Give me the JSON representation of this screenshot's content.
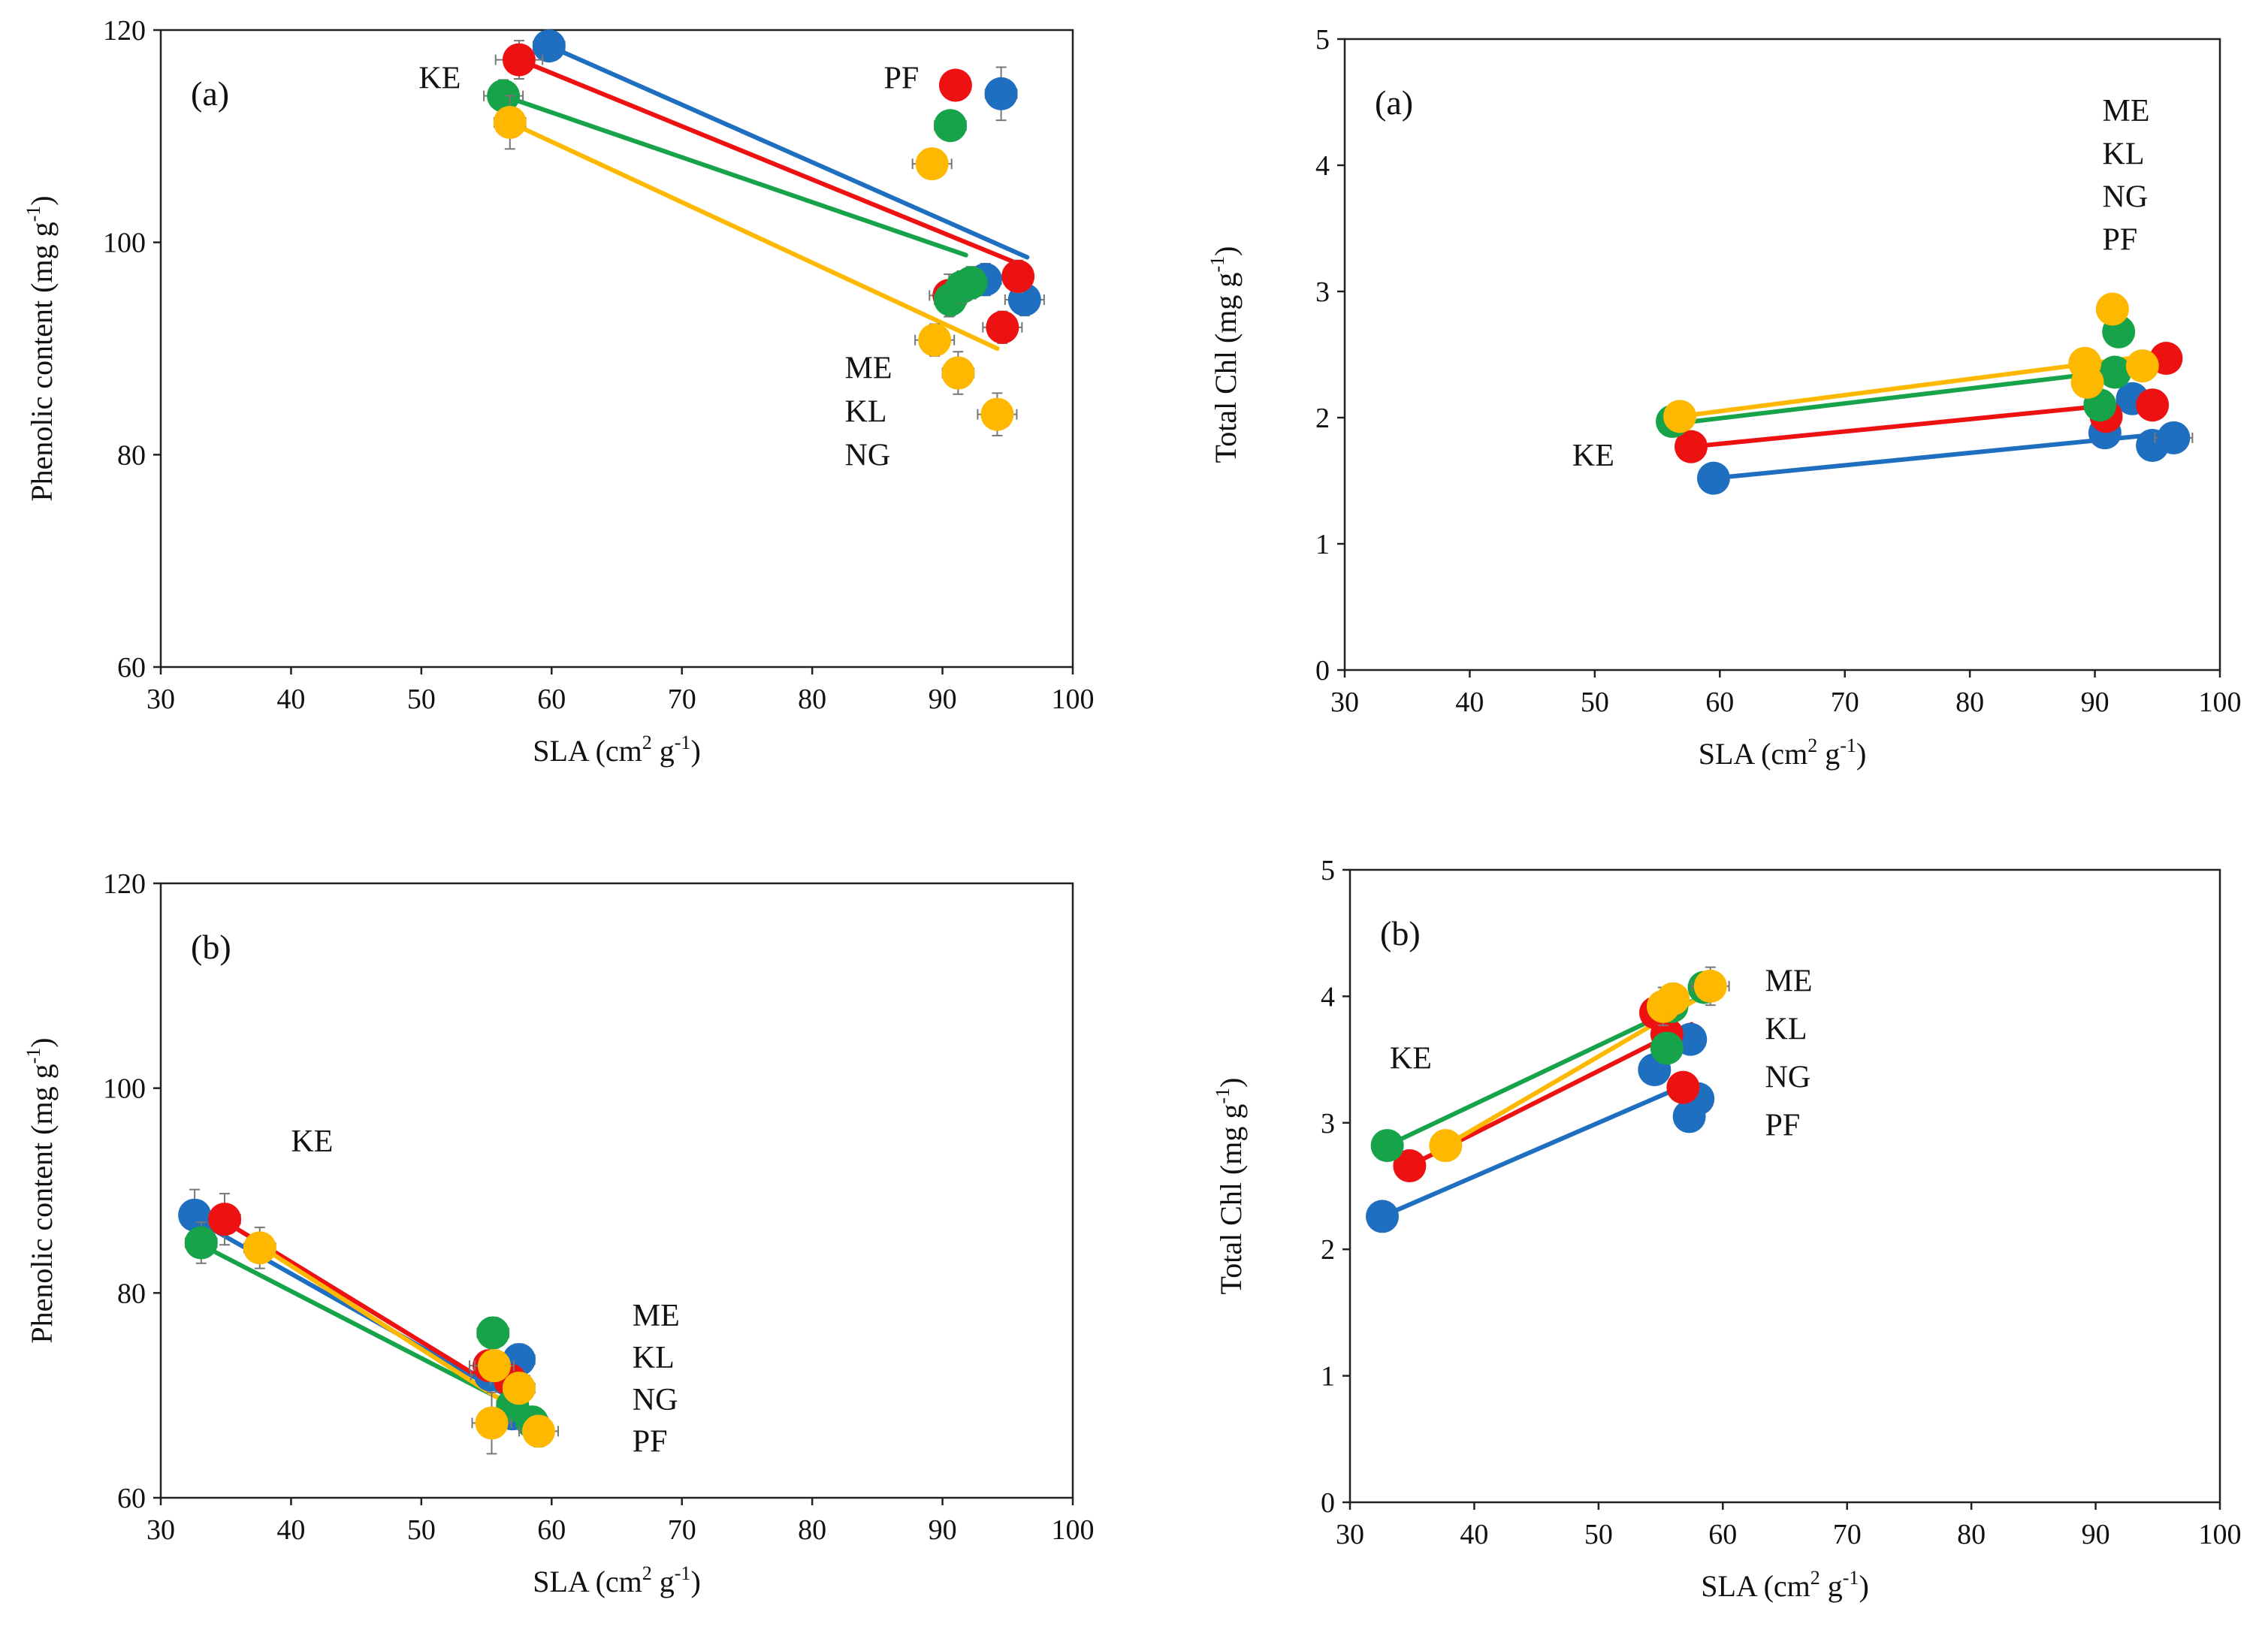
{
  "colors": {
    "ME": "#1f6fc0",
    "KL": "#ee1111",
    "NG": "#16a34a",
    "PF": "#ffb800"
  },
  "chart_data": [
    {
      "id": "top-left",
      "type": "scatter",
      "panel_label": "(a)",
      "xlabel": {
        "main": "SLA (cm",
        "sup1": "2",
        "mid": " g",
        "sup2": "-1",
        "end": ")"
      },
      "ylabel": {
        "main": "Phenolic content (mg g",
        "sup": "-1",
        "end": ")"
      },
      "xlim": [
        30,
        100
      ],
      "ylim": [
        60,
        120
      ],
      "xticks": [
        "30",
        "40",
        "50",
        "60",
        "70",
        "80",
        "90",
        "100"
      ],
      "yticks": [
        "60",
        "80",
        "100",
        "120"
      ],
      "site_labels": [
        {
          "text": "KE",
          "x": 49.8,
          "y": 114.5
        },
        {
          "text": "PF",
          "x": 85.5,
          "y": 114.5
        },
        {
          "text": "ME",
          "x": 82.5,
          "y": 87.2
        },
        {
          "text": "KL",
          "x": 82.5,
          "y": 83.1
        },
        {
          "text": "NG",
          "x": 82.5,
          "y": 79.0
        }
      ],
      "series": [
        {
          "name": "ME",
          "points": [
            {
              "x": 59.8,
              "y": 118.5,
              "xerr": 1.2,
              "yerr": 1.2
            },
            {
              "x": 94.5,
              "y": 114.0,
              "xerr": 1.2,
              "yerr": 2.5
            },
            {
              "x": 93.3,
              "y": 96.5,
              "xerr": 1.2,
              "yerr": 1.5
            },
            {
              "x": 96.3,
              "y": 94.6,
              "xerr": 1.5,
              "yerr": 1.5
            }
          ],
          "fit": [
            [
              59.8,
              118.5
            ],
            [
              96.5,
              98.6
            ]
          ]
        },
        {
          "name": "KL",
          "points": [
            {
              "x": 57.5,
              "y": 117.2,
              "xerr": 1.8,
              "yerr": 1.8
            },
            {
              "x": 91.0,
              "y": 114.8,
              "xerr": 1.0,
              "yerr": 1.2
            },
            {
              "x": 90.5,
              "y": 95.0,
              "xerr": 1.5,
              "yerr": 2.0
            },
            {
              "x": 95.8,
              "y": 96.8,
              "xerr": 1.0,
              "yerr": 1.5
            },
            {
              "x": 94.6,
              "y": 92.0,
              "xerr": 1.5,
              "yerr": 1.5
            }
          ],
          "fit": [
            [
              57.5,
              117.2
            ],
            [
              96.0,
              97.9
            ]
          ]
        },
        {
          "name": "NG",
          "points": [
            {
              "x": 56.3,
              "y": 113.8,
              "xerr": 1.5,
              "yerr": 1.5
            },
            {
              "x": 90.6,
              "y": 111.0,
              "xerr": 1.2,
              "yerr": 1.2
            },
            {
              "x": 90.6,
              "y": 94.6,
              "xerr": 1.2,
              "yerr": 1.5
            },
            {
              "x": 91.5,
              "y": 95.8,
              "xerr": 1.2,
              "yerr": 1.5
            },
            {
              "x": 92.2,
              "y": 96.2,
              "xerr": 1.0,
              "yerr": 1.5
            }
          ],
          "fit": [
            [
              56.3,
              113.8
            ],
            [
              91.8,
              98.8
            ]
          ]
        },
        {
          "name": "PF",
          "points": [
            {
              "x": 56.8,
              "y": 111.3,
              "xerr": 1.2,
              "yerr": 2.5
            },
            {
              "x": 89.2,
              "y": 107.4,
              "xerr": 1.5,
              "yerr": 1.2
            },
            {
              "x": 89.4,
              "y": 90.8,
              "xerr": 1.5,
              "yerr": 1.5
            },
            {
              "x": 91.2,
              "y": 87.7,
              "xerr": 1.2,
              "yerr": 2.0
            },
            {
              "x": 94.2,
              "y": 83.8,
              "xerr": 1.5,
              "yerr": 2.0
            }
          ],
          "fit": [
            [
              56.8,
              111.3
            ],
            [
              94.2,
              90.0
            ]
          ]
        }
      ]
    },
    {
      "id": "top-right",
      "type": "scatter",
      "panel_label": "(a)",
      "xlabel": {
        "main": "SLA (cm",
        "sup1": "2",
        "mid": " g",
        "sup2": "-1",
        "end": ")"
      },
      "ylabel": {
        "main": "Total Chl (mg g",
        "sup": "-1",
        "end": ")"
      },
      "xlim": [
        30,
        100
      ],
      "ylim": [
        0,
        5
      ],
      "xticks": [
        "30",
        "40",
        "50",
        "60",
        "70",
        "80",
        "90",
        "100"
      ],
      "yticks": [
        "0",
        "1",
        "2",
        "3",
        "4",
        "5"
      ],
      "site_labels": [
        {
          "text": "ME",
          "x": 90.6,
          "y": 4.35
        },
        {
          "text": "KL",
          "x": 90.6,
          "y": 4.01
        },
        {
          "text": "NG",
          "x": 90.6,
          "y": 3.67
        },
        {
          "text": "PF",
          "x": 90.6,
          "y": 3.33
        },
        {
          "text": "KE",
          "x": 48.2,
          "y": 1.62
        }
      ],
      "series": [
        {
          "name": "ME",
          "points": [
            {
              "x": 59.5,
              "y": 1.52,
              "xerr": 1.0,
              "yerr": 0.05
            },
            {
              "x": 90.8,
              "y": 1.88,
              "xerr": 1.2,
              "yerr": 0.06
            },
            {
              "x": 93.0,
              "y": 2.15,
              "xerr": 1.2,
              "yerr": 0.06
            },
            {
              "x": 94.6,
              "y": 1.78,
              "xerr": 1.2,
              "yerr": 0.05
            },
            {
              "x": 96.3,
              "y": 1.84,
              "xerr": 1.5,
              "yerr": 0.05
            }
          ],
          "fit": [
            [
              59.5,
              1.52
            ],
            [
              96.3,
              1.88
            ]
          ]
        },
        {
          "name": "KL",
          "points": [
            {
              "x": 57.7,
              "y": 1.77,
              "xerr": 1.0,
              "yerr": 0.05
            },
            {
              "x": 90.9,
              "y": 2.01,
              "xerr": 1.2,
              "yerr": 0.06
            },
            {
              "x": 94.6,
              "y": 2.1,
              "xerr": 1.2,
              "yerr": 0.06
            },
            {
              "x": 95.7,
              "y": 2.47,
              "xerr": 1.2,
              "yerr": 0.06
            }
          ],
          "fit": [
            [
              57.7,
              1.77
            ],
            [
              95.5,
              2.14
            ]
          ]
        },
        {
          "name": "NG",
          "points": [
            {
              "x": 56.2,
              "y": 1.97,
              "xerr": 1.2,
              "yerr": 0.05
            },
            {
              "x": 90.4,
              "y": 2.1,
              "xerr": 1.2,
              "yerr": 0.06
            },
            {
              "x": 91.6,
              "y": 2.36,
              "xerr": 1.2,
              "yerr": 0.06
            },
            {
              "x": 91.9,
              "y": 2.68,
              "xerr": 1.2,
              "yerr": 0.06
            }
          ],
          "fit": [
            [
              56.2,
              1.95
            ],
            [
              91.8,
              2.37
            ]
          ]
        },
        {
          "name": "PF",
          "points": [
            {
              "x": 56.8,
              "y": 2.01,
              "xerr": 1.2,
              "yerr": 0.05
            },
            {
              "x": 89.2,
              "y": 2.43,
              "xerr": 1.2,
              "yerr": 0.06
            },
            {
              "x": 89.4,
              "y": 2.28,
              "xerr": 1.2,
              "yerr": 0.06
            },
            {
              "x": 93.8,
              "y": 2.41,
              "xerr": 1.2,
              "yerr": 0.06
            },
            {
              "x": 91.4,
              "y": 2.86,
              "xerr": 1.2,
              "yerr": 0.06
            }
          ],
          "fit": [
            [
              56.8,
              2.01
            ],
            [
              93.6,
              2.48
            ]
          ]
        }
      ]
    },
    {
      "id": "bottom-left",
      "type": "scatter",
      "panel_label": "(b)",
      "xlabel": {
        "main": "SLA (cm",
        "sup1": "2",
        "mid": " g",
        "sup2": "-1",
        "end": ")"
      },
      "ylabel": {
        "main": "Phenolic content (mg g",
        "sup": "-1",
        "end": ")"
      },
      "xlim": [
        30,
        100
      ],
      "ylim": [
        60,
        120
      ],
      "xticks": [
        "30",
        "40",
        "50",
        "60",
        "70",
        "80",
        "90",
        "100"
      ],
      "yticks": [
        "60",
        "80",
        "100",
        "120"
      ],
      "site_labels": [
        {
          "text": "KE",
          "x": 40.0,
          "y": 93.8
        },
        {
          "text": "ME",
          "x": 66.2,
          "y": 76.8
        },
        {
          "text": "KL",
          "x": 66.2,
          "y": 72.7
        },
        {
          "text": "NG",
          "x": 66.2,
          "y": 68.6
        },
        {
          "text": "PF",
          "x": 66.2,
          "y": 64.5
        }
      ],
      "series": [
        {
          "name": "ME",
          "points": [
            {
              "x": 32.6,
              "y": 87.6,
              "xerr": 1.0,
              "yerr": 2.5
            },
            {
              "x": 55.3,
              "y": 72.0,
              "xerr": 1.5,
              "yerr": 1.5
            },
            {
              "x": 57.5,
              "y": 73.5,
              "xerr": 1.2,
              "yerr": 1.5
            },
            {
              "x": 57.0,
              "y": 68.2,
              "xerr": 1.2,
              "yerr": 1.5
            }
          ],
          "fit": [
            [
              32.6,
              87.2
            ],
            [
              58.5,
              68.6
            ]
          ]
        },
        {
          "name": "KL",
          "points": [
            {
              "x": 34.9,
              "y": 87.2,
              "xerr": 1.2,
              "yerr": 2.5
            },
            {
              "x": 55.2,
              "y": 72.9,
              "xerr": 1.5,
              "yerr": 1.5
            },
            {
              "x": 56.8,
              "y": 71.5,
              "xerr": 1.5,
              "yerr": 1.5
            }
          ],
          "fit": [
            [
              34.9,
              87.0
            ],
            [
              58.0,
              69.0
            ]
          ]
        },
        {
          "name": "NG",
          "points": [
            {
              "x": 33.1,
              "y": 84.9,
              "xerr": 1.2,
              "yerr": 2.0
            },
            {
              "x": 55.5,
              "y": 76.1,
              "xerr": 1.2,
              "yerr": 1.5
            },
            {
              "x": 57.0,
              "y": 69.0,
              "xerr": 1.2,
              "yerr": 1.5
            },
            {
              "x": 58.5,
              "y": 67.4,
              "xerr": 1.2,
              "yerr": 1.5
            }
          ],
          "fit": [
            [
              33.1,
              84.7
            ],
            [
              59.2,
              67.6
            ]
          ]
        },
        {
          "name": "PF",
          "points": [
            {
              "x": 37.6,
              "y": 84.4,
              "xerr": 1.2,
              "yerr": 2.0
            },
            {
              "x": 55.6,
              "y": 72.9,
              "xerr": 1.5,
              "yerr": 1.5
            },
            {
              "x": 57.5,
              "y": 70.7,
              "xerr": 1.2,
              "yerr": 1.5
            },
            {
              "x": 55.4,
              "y": 67.3,
              "xerr": 1.5,
              "yerr": 3.0
            },
            {
              "x": 59.0,
              "y": 66.5,
              "xerr": 1.5,
              "yerr": 1.5
            }
          ],
          "fit": [
            [
              37.6,
              84.6
            ],
            [
              59.0,
              67.2
            ]
          ]
        }
      ]
    },
    {
      "id": "bottom-right",
      "type": "scatter",
      "panel_label": "(b)",
      "xlabel": {
        "main": "SLA (cm",
        "sup1": "2",
        "mid": " g",
        "sup2": "-1",
        "end": ")"
      },
      "ylabel": {
        "main": "Total Chl (mg g",
        "sup": "-1",
        "end": ")"
      },
      "xlim": [
        30,
        100
      ],
      "ylim": [
        0,
        5
      ],
      "xticks": [
        "30",
        "40",
        "50",
        "60",
        "70",
        "80",
        "90",
        "100"
      ],
      "yticks": [
        "0",
        "1",
        "2",
        "3",
        "4",
        "5"
      ],
      "site_labels": [
        {
          "text": "KE",
          "x": 33.2,
          "y": 3.43
        },
        {
          "text": "ME",
          "x": 63.4,
          "y": 4.04
        },
        {
          "text": "KL",
          "x": 63.4,
          "y": 3.66
        },
        {
          "text": "NG",
          "x": 63.4,
          "y": 3.28
        },
        {
          "text": "PF",
          "x": 63.4,
          "y": 2.9
        }
      ],
      "series": [
        {
          "name": "ME",
          "points": [
            {
              "x": 32.6,
              "y": 2.26,
              "xerr": 0.8,
              "yerr": 0.06
            },
            {
              "x": 54.5,
              "y": 3.42,
              "xerr": 1.2,
              "yerr": 0.08
            },
            {
              "x": 57.4,
              "y": 3.66,
              "xerr": 1.2,
              "yerr": 0.08
            },
            {
              "x": 58.0,
              "y": 3.19,
              "xerr": 1.2,
              "yerr": 0.08
            },
            {
              "x": 57.3,
              "y": 3.05,
              "xerr": 1.2,
              "yerr": 0.08
            }
          ],
          "fit": [
            [
              32.6,
              2.26
            ],
            [
              57.5,
              3.32
            ]
          ]
        },
        {
          "name": "KL",
          "points": [
            {
              "x": 34.8,
              "y": 2.66,
              "xerr": 1.2,
              "yerr": 0.08
            },
            {
              "x": 54.6,
              "y": 3.87,
              "xerr": 1.2,
              "yerr": 0.1
            },
            {
              "x": 55.5,
              "y": 3.7,
              "xerr": 1.2,
              "yerr": 0.1
            },
            {
              "x": 56.8,
              "y": 3.28,
              "xerr": 1.2,
              "yerr": 0.08
            }
          ],
          "fit": [
            [
              34.8,
              2.66
            ],
            [
              57.5,
              3.78
            ]
          ]
        },
        {
          "name": "NG",
          "points": [
            {
              "x": 33.0,
              "y": 2.82,
              "xerr": 1.0,
              "yerr": 0.08
            },
            {
              "x": 55.5,
              "y": 3.59,
              "xerr": 1.2,
              "yerr": 0.1
            },
            {
              "x": 55.9,
              "y": 3.92,
              "xerr": 1.2,
              "yerr": 0.1
            },
            {
              "x": 58.5,
              "y": 4.07,
              "xerr": 1.2,
              "yerr": 0.1
            }
          ],
          "fit": [
            [
              33.0,
              2.82
            ],
            [
              59.0,
              4.03
            ]
          ]
        },
        {
          "name": "PF",
          "points": [
            {
              "x": 37.7,
              "y": 2.82,
              "xerr": 1.2,
              "yerr": 0.12
            },
            {
              "x": 55.2,
              "y": 3.92,
              "xerr": 1.2,
              "yerr": 0.15
            },
            {
              "x": 56.0,
              "y": 3.98,
              "xerr": 1.2,
              "yerr": 0.12
            },
            {
              "x": 59.0,
              "y": 4.08,
              "xerr": 1.5,
              "yerr": 0.15
            }
          ],
          "fit": [
            [
              37.7,
              2.82
            ],
            [
              59.0,
              4.04
            ]
          ]
        }
      ]
    }
  ]
}
